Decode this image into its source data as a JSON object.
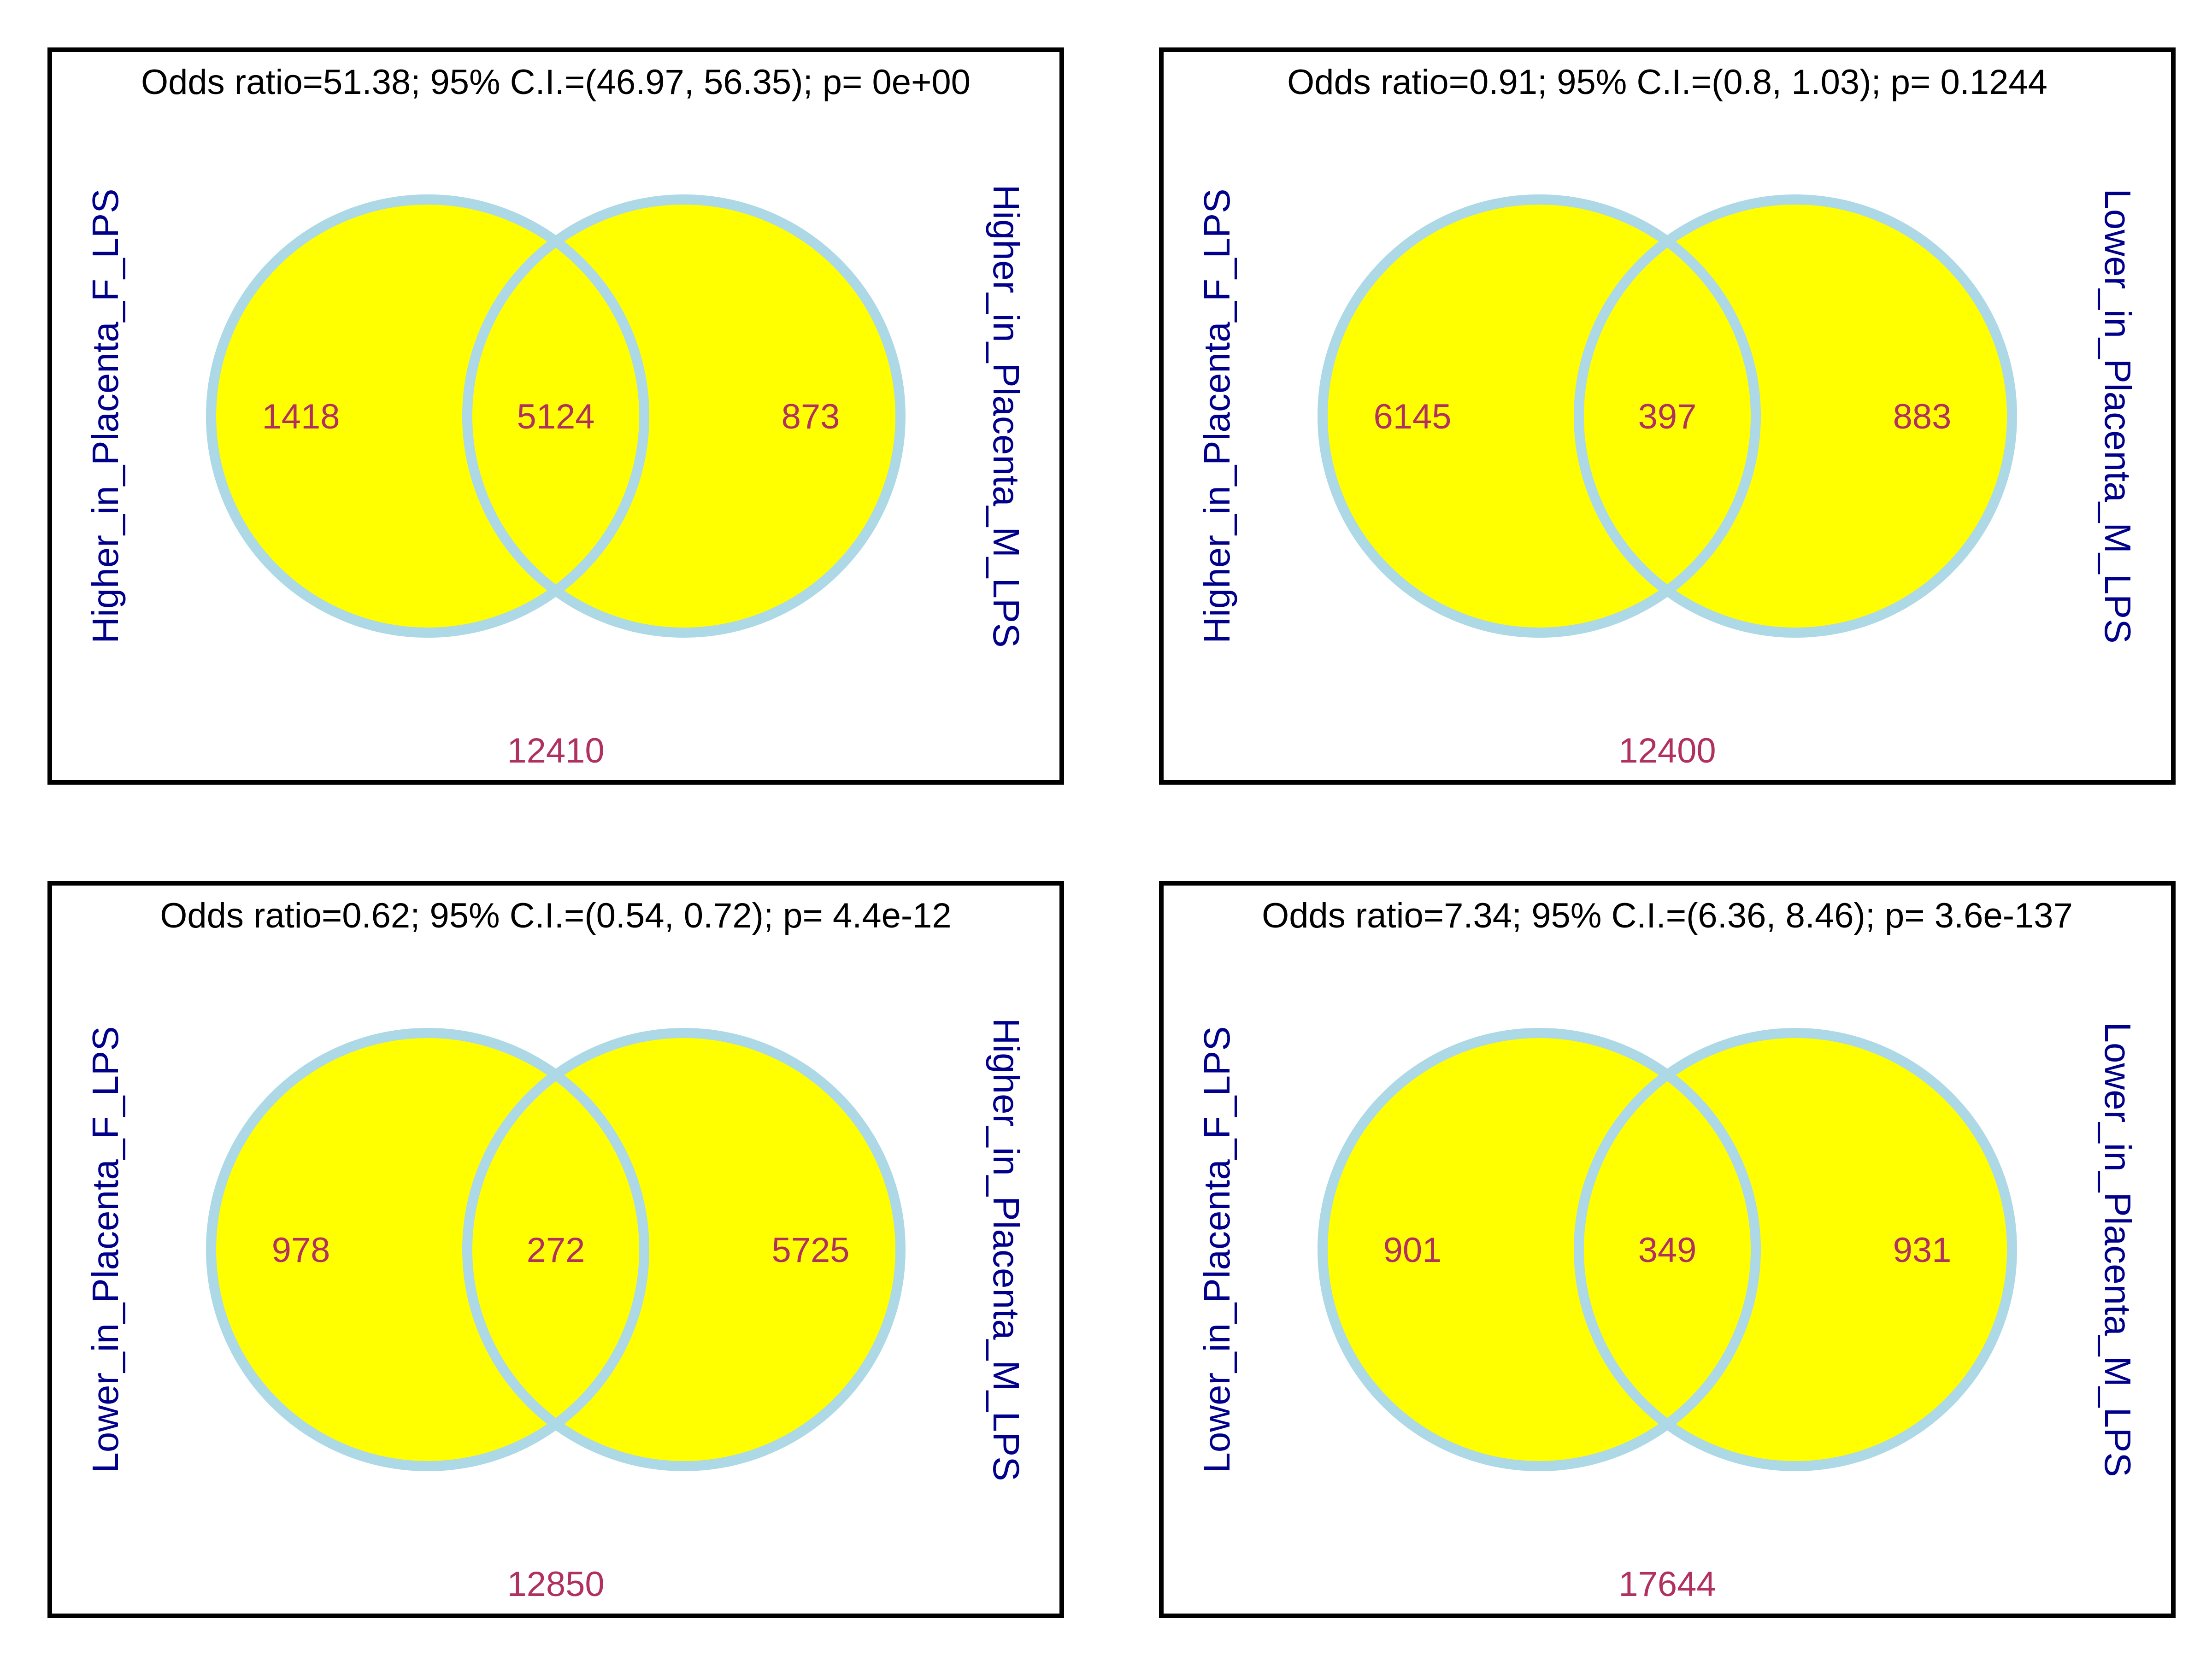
{
  "colors": {
    "circle_fill": "#ffff00",
    "circle_stroke": "#add8e6",
    "panel_border": "#000000",
    "label_color": "#00008b",
    "count_color": "#b03060"
  },
  "panels": [
    {
      "title": "Odds ratio=51.38; 95% C.I.=(46.97, 56.35); p= 0e+00",
      "left_label": "Higher_in_Placenta_F_LPS",
      "right_label": "Higher_in_Placenta_M_LPS",
      "left_only": "1418",
      "overlap": "5124",
      "right_only": "873",
      "outside": "12410"
    },
    {
      "title": "Odds ratio=0.91; 95% C.I.=(0.8, 1.03); p= 0.1244",
      "left_label": "Higher_in_Placenta_F_LPS",
      "right_label": "Lower_in_Placenta_M_LPS",
      "left_only": "6145",
      "overlap": "397",
      "right_only": "883",
      "outside": "12400"
    },
    {
      "title": "Odds ratio=0.62; 95% C.I.=(0.54, 0.72); p= 4.4e-12",
      "left_label": "Lower_in_Placenta_F_LPS",
      "right_label": "Higher_in_Placenta_M_LPS",
      "left_only": "978",
      "overlap": "272",
      "right_only": "5725",
      "outside": "12850"
    },
    {
      "title": "Odds ratio=7.34; 95% C.I.=(6.36, 8.46); p= 3.6e-137",
      "left_label": "Lower_in_Placenta_F_LPS",
      "right_label": "Lower_in_Placenta_M_LPS",
      "left_only": "901",
      "overlap": "349",
      "right_only": "931",
      "outside": "17644"
    }
  ]
}
